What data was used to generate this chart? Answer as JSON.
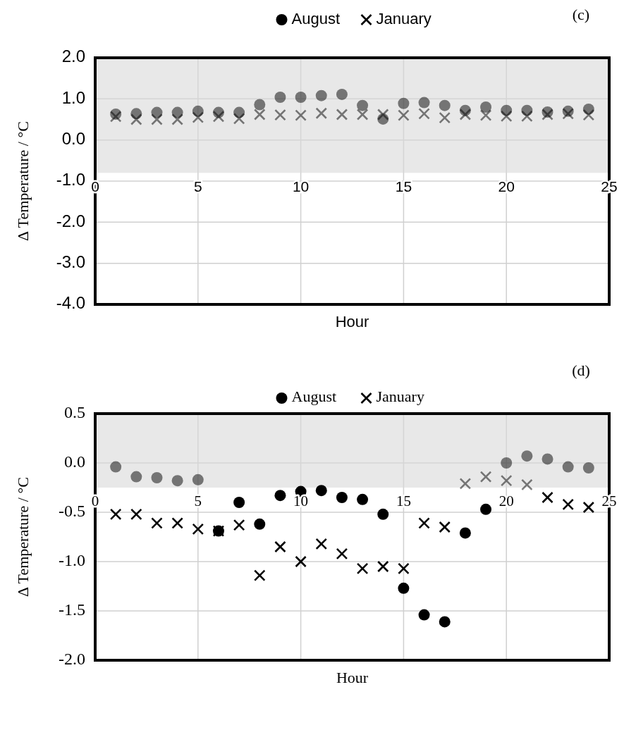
{
  "chart_data": [
    {
      "type": "scatter",
      "title": "(c)",
      "xlabel": "Hour",
      "ylabel": "Δ Temperature / °C",
      "x": [
        1,
        2,
        3,
        4,
        5,
        6,
        7,
        8,
        9,
        10,
        11,
        12,
        13,
        14,
        15,
        16,
        17,
        18,
        19,
        20,
        21,
        22,
        23,
        24
      ],
      "xlim": [
        0,
        25
      ],
      "xticks": [
        0,
        5,
        10,
        15,
        20,
        25
      ],
      "ylim": [
        -4,
        2
      ],
      "yticks": [
        {
          "value": -4,
          "label": "-4.0"
        },
        {
          "value": -3,
          "label": "-3.0"
        },
        {
          "value": -2,
          "label": "-2.0"
        },
        {
          "value": -1,
          "label": "-1.0"
        },
        {
          "value": 0,
          "label": "0.0"
        },
        {
          "value": 1,
          "label": "1.0"
        },
        {
          "value": 2,
          "label": "2.0"
        }
      ],
      "grid": true,
      "legend": "top",
      "bands": [
        {
          "axis": "y",
          "from": -0.8,
          "to": 2,
          "color": "#d9d9d9"
        }
      ],
      "series": [
        {
          "name": "August",
          "color": "#000000",
          "marker": "circle",
          "values": [
            0.63,
            0.64,
            0.67,
            0.67,
            0.7,
            0.67,
            0.67,
            0.86,
            1.04,
            1.04,
            1.08,
            1.11,
            0.84,
            0.51,
            0.89,
            0.91,
            0.84,
            0.72,
            0.8,
            0.72,
            0.72,
            0.68,
            0.7,
            0.75
          ]
        },
        {
          "name": "January",
          "color": "#000000",
          "marker": "cross",
          "values": [
            0.57,
            0.5,
            0.5,
            0.5,
            0.55,
            0.57,
            0.52,
            0.62,
            0.61,
            0.6,
            0.65,
            0.62,
            0.62,
            0.62,
            0.6,
            0.64,
            0.54,
            0.62,
            0.6,
            0.58,
            0.58,
            0.62,
            0.64,
            0.61
          ]
        }
      ]
    },
    {
      "type": "scatter",
      "title": "(d)",
      "xlabel": "Hour",
      "ylabel": "Δ Temperature / °C",
      "x": [
        1,
        2,
        3,
        4,
        5,
        6,
        7,
        8,
        9,
        10,
        11,
        12,
        13,
        14,
        15,
        16,
        17,
        18,
        19,
        20,
        21,
        22,
        23,
        24
      ],
      "xlim": [
        0,
        25
      ],
      "xticks": [
        0,
        5,
        10,
        15,
        20,
        25
      ],
      "ylim": [
        -2,
        0.5
      ],
      "yticks": [
        {
          "value": -2,
          "label": "-2.0"
        },
        {
          "value": -1.5,
          "label": "-1.5"
        },
        {
          "value": -1,
          "label": "-1.0"
        },
        {
          "value": -0.5,
          "label": "-0.5"
        },
        {
          "value": 0,
          "label": "0.0"
        },
        {
          "value": 0.5,
          "label": "0.5"
        }
      ],
      "grid": true,
      "legend": "top",
      "bands": [
        {
          "axis": "y",
          "from": -0.25,
          "to": 0.5,
          "color": "#d9d9d9"
        }
      ],
      "series": [
        {
          "name": "August",
          "color": "#000000",
          "marker": "circle",
          "values": [
            -0.04,
            -0.14,
            -0.15,
            -0.18,
            -0.17,
            -0.69,
            -0.4,
            -0.62,
            -0.33,
            -0.29,
            -0.28,
            -0.35,
            -0.37,
            -0.52,
            -1.27,
            -1.54,
            -1.61,
            -0.71,
            -0.47,
            0.0,
            0.07,
            0.04,
            -0.04,
            -0.05
          ]
        },
        {
          "name": "January",
          "color": "#000000",
          "marker": "cross",
          "values": [
            -0.52,
            -0.52,
            -0.61,
            -0.61,
            -0.67,
            -0.69,
            -0.63,
            -1.14,
            -0.85,
            -1.0,
            -0.82,
            -0.92,
            -1.07,
            -1.05,
            -1.07,
            -0.61,
            -0.65,
            -0.21,
            -0.14,
            -0.18,
            -0.22,
            -0.35,
            -0.42,
            -0.45
          ]
        }
      ]
    }
  ]
}
